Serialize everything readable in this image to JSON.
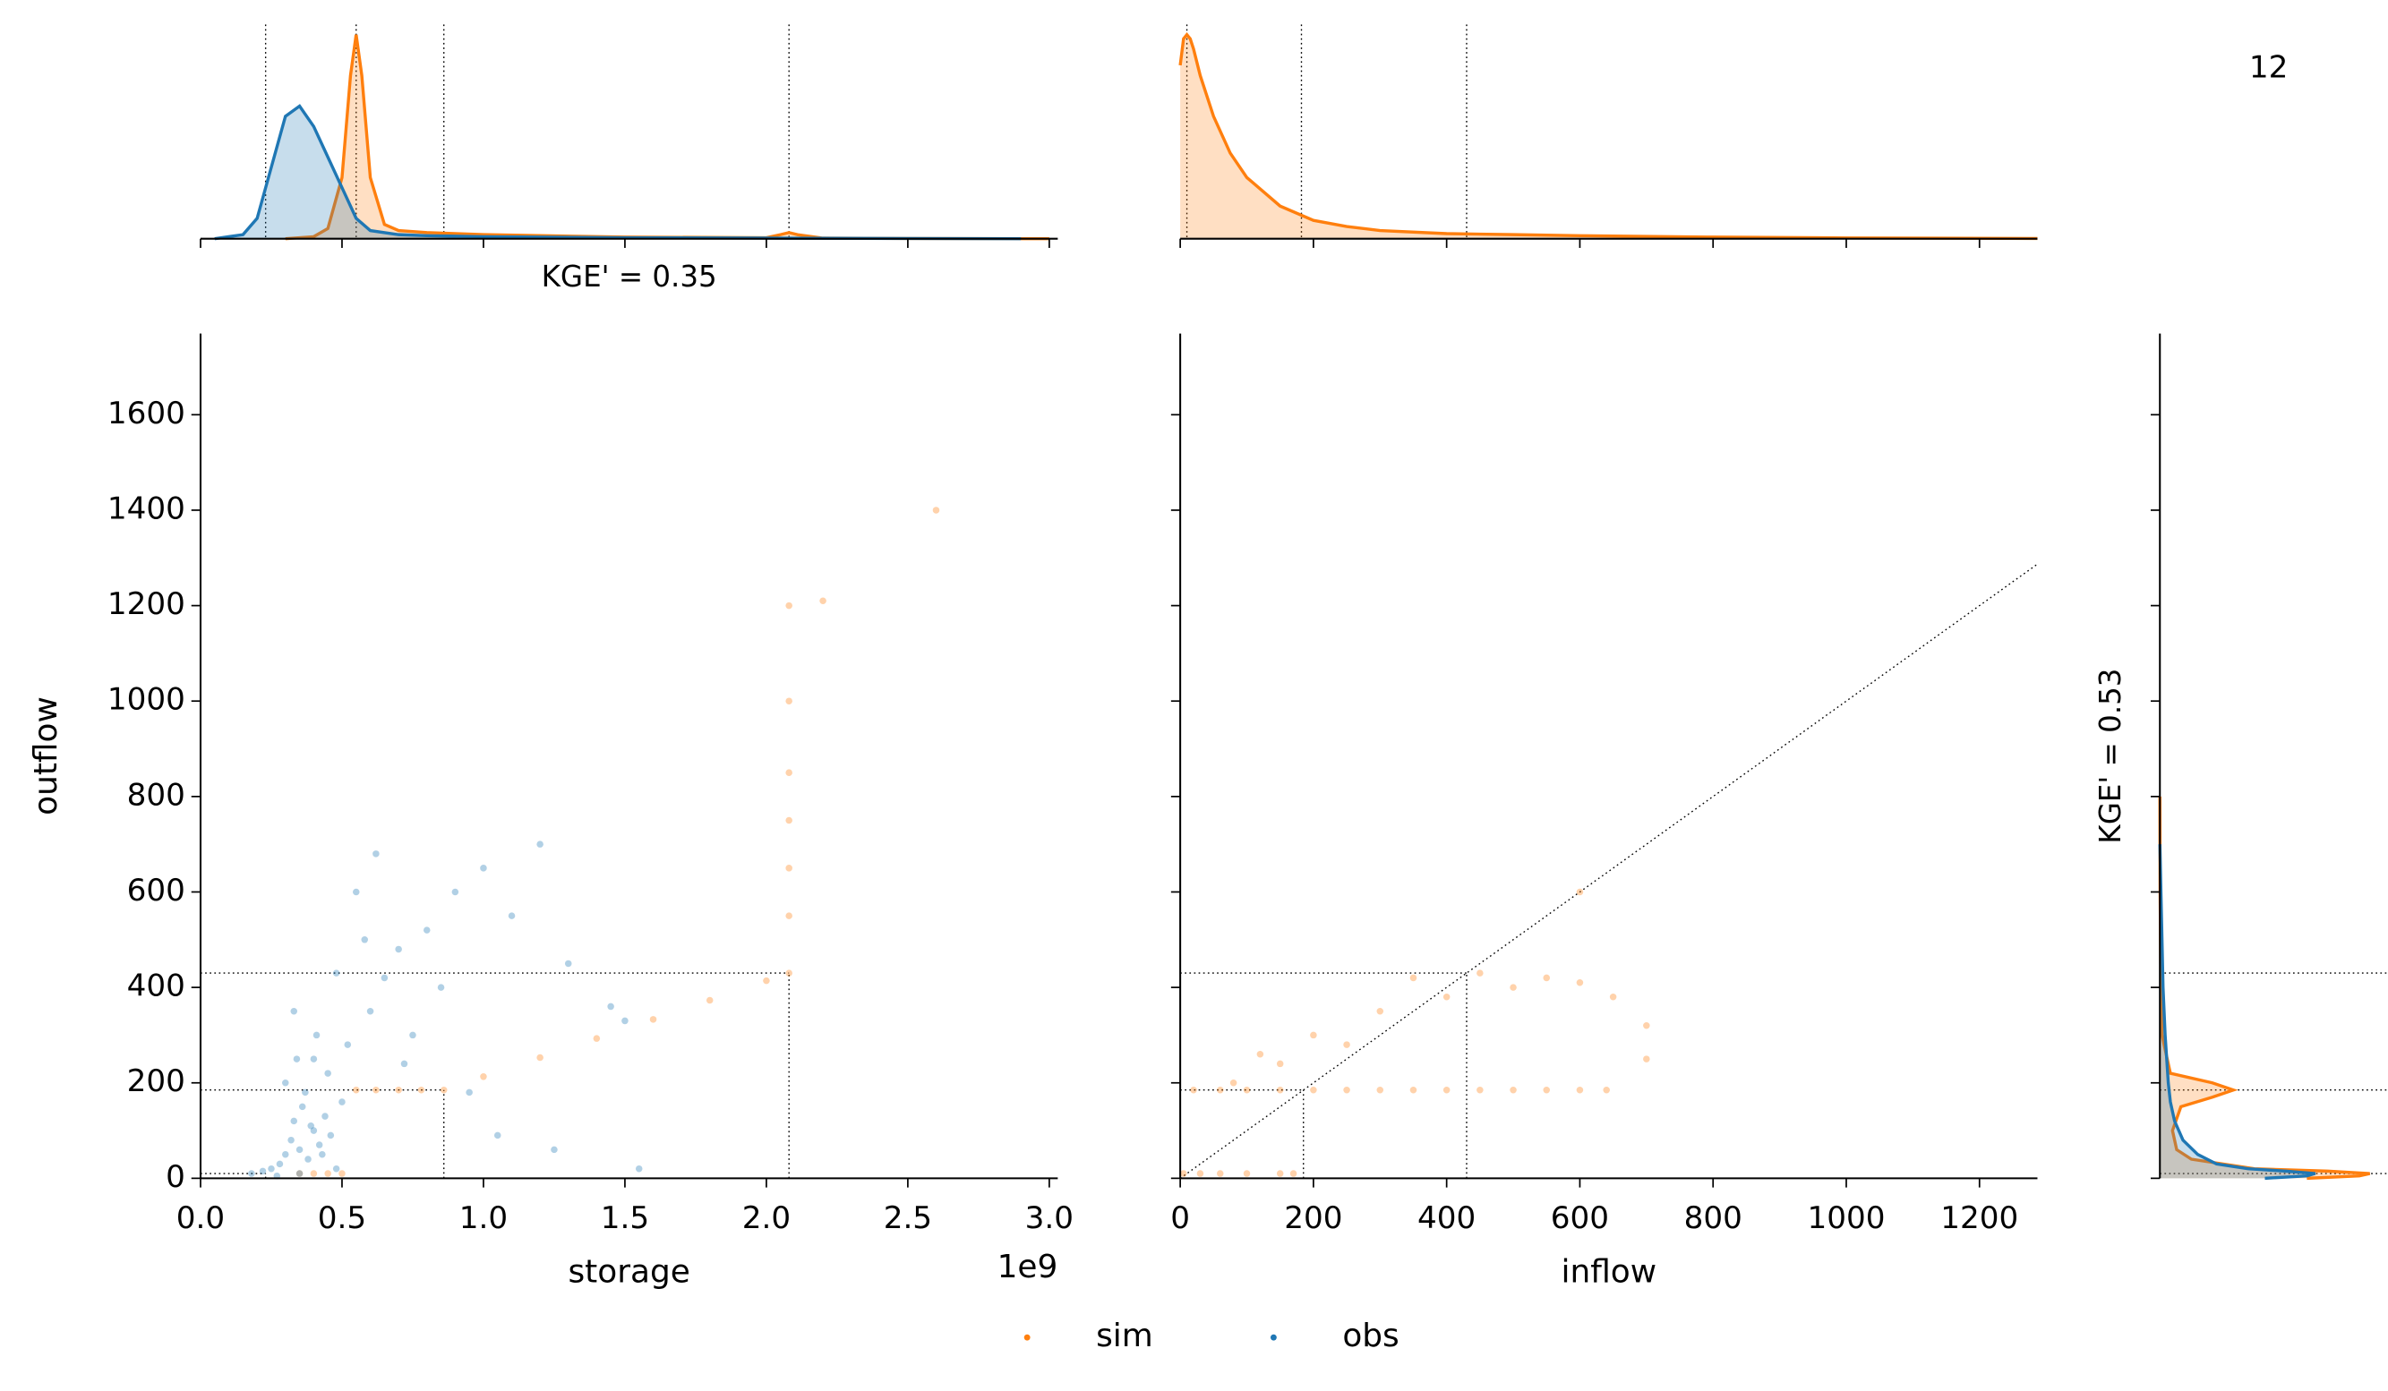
{
  "panel_label": "12",
  "chart_data": [
    {
      "type": "scatter",
      "xlabel": "storage",
      "ylabel": "outflow",
      "x_offset_label": "1e9",
      "xlim": [
        0,
        3.03
      ],
      "ylim": [
        0,
        1770
      ],
      "xticks": [
        {
          "value": 0,
          "label": "0.0"
        },
        0.5,
        {
          "value": 1,
          "label": "1.0"
        },
        1.5,
        {
          "value": 2,
          "label": "2.0"
        },
        2.5,
        {
          "value": 3,
          "label": "3.0"
        }
      ],
      "yticks": [
        0,
        200,
        400,
        600,
        800,
        1000,
        1200,
        1400,
        1600
      ],
      "thresholds": {
        "x": [
          0.23,
          0.86,
          2.08
        ],
        "y": [
          10,
          185,
          430
        ]
      },
      "series": [
        {
          "name": "sim",
          "color": "#ff7f0e",
          "x": [
            0.35,
            0.4,
            0.45,
            0.5,
            0.55,
            0.62,
            0.7,
            0.78,
            0.86,
            1.0,
            1.2,
            1.4,
            1.6,
            1.8,
            2.0,
            2.08,
            2.08,
            2.08,
            2.08,
            2.08,
            2.08,
            2.08,
            2.2,
            2.6
          ],
          "values": [
            10,
            10,
            10,
            10,
            185,
            185,
            185,
            185,
            185,
            213,
            253,
            293,
            333,
            373,
            414,
            430,
            550,
            650,
            750,
            850,
            1000,
            1200,
            1210,
            1400
          ]
        },
        {
          "name": "obs",
          "color": "#1f77b4",
          "x": [
            0.18,
            0.22,
            0.25,
            0.28,
            0.3,
            0.32,
            0.33,
            0.35,
            0.36,
            0.38,
            0.4,
            0.42,
            0.44,
            0.46,
            0.48,
            0.5,
            0.3,
            0.34,
            0.37,
            0.41,
            0.45,
            0.39,
            0.43,
            0.35,
            0.52,
            0.6,
            0.65,
            0.7,
            0.75,
            0.8,
            0.9,
            1.0,
            1.1,
            1.2,
            1.3,
            1.45,
            1.5,
            0.55,
            0.62,
            0.72,
            0.85,
            0.95,
            1.05,
            1.25,
            1.55,
            0.48,
            0.58,
            0.33,
            0.4,
            0.27
          ],
          "values": [
            10,
            15,
            20,
            30,
            50,
            80,
            120,
            60,
            150,
            40,
            100,
            70,
            130,
            90,
            20,
            160,
            200,
            250,
            180,
            300,
            220,
            110,
            50,
            10,
            280,
            350,
            420,
            480,
            300,
            520,
            600,
            650,
            550,
            700,
            450,
            360,
            330,
            600,
            680,
            240,
            400,
            180,
            90,
            60,
            20,
            430,
            500,
            350,
            250,
            5
          ]
        }
      ]
    },
    {
      "type": "scatter",
      "xlabel": "inflow",
      "xlim": [
        0,
        1287
      ],
      "xticks": [
        0,
        200,
        400,
        600,
        800,
        1000,
        1200
      ],
      "identity_line": true,
      "thresholds": {
        "x": [
          185,
          430
        ],
        "y": [
          185,
          430
        ]
      },
      "series": [
        {
          "name": "sim",
          "color": "#ff7f0e",
          "x": [
            5,
            30,
            60,
            100,
            150,
            170,
            20,
            60,
            100,
            150,
            200,
            250,
            300,
            350,
            400,
            450,
            500,
            550,
            600,
            640,
            80,
            120,
            200,
            300,
            400,
            500,
            600,
            700,
            150,
            250,
            350,
            450,
            550,
            650,
            700,
            600
          ],
          "values": [
            10,
            10,
            10,
            10,
            10,
            10,
            185,
            185,
            185,
            185,
            185,
            185,
            185,
            185,
            185,
            185,
            185,
            185,
            185,
            185,
            200,
            260,
            300,
            350,
            380,
            400,
            410,
            320,
            240,
            280,
            420,
            430,
            420,
            380,
            250,
            600
          ]
        }
      ]
    },
    {
      "type": "kde",
      "annotation": "KGE' = 0.35",
      "xlim": [
        0,
        3.03
      ],
      "ylim": [
        0,
        1.05
      ],
      "vlines": [
        0.23,
        0.55,
        0.86,
        2.08
      ],
      "series": [
        {
          "name": "sim",
          "color": "#ff7f0e",
          "x": [
            0.3,
            0.4,
            0.45,
            0.5,
            0.53,
            0.55,
            0.57,
            0.6,
            0.65,
            0.7,
            0.8,
            0.9,
            1.0,
            1.5,
            2.0,
            2.05,
            2.08,
            2.11,
            2.2,
            2.5,
            3.0
          ],
          "values": [
            0,
            0.01,
            0.05,
            0.3,
            0.8,
            1,
            0.8,
            0.3,
            0.07,
            0.04,
            0.03,
            0.025,
            0.02,
            0.008,
            0.005,
            0.02,
            0.03,
            0.02,
            0.003,
            0.001,
            0
          ]
        },
        {
          "name": "obs",
          "color": "#1f77b4",
          "x": [
            0.05,
            0.15,
            0.2,
            0.25,
            0.3,
            0.35,
            0.4,
            0.45,
            0.5,
            0.55,
            0.6,
            0.7,
            0.8,
            1.0,
            1.5,
            2.0,
            2.5,
            2.9
          ],
          "values": [
            0,
            0.02,
            0.1,
            0.35,
            0.6,
            0.65,
            0.55,
            0.4,
            0.25,
            0.1,
            0.04,
            0.02,
            0.015,
            0.01,
            0.005,
            0.003,
            0.001,
            0
          ]
        }
      ]
    },
    {
      "type": "kde",
      "xlim": [
        0,
        1287
      ],
      "ylim": [
        0,
        1.05
      ],
      "vlines": [
        10,
        182,
        430
      ],
      "series": [
        {
          "name": "sim",
          "color": "#ff7f0e",
          "x": [
            0,
            5,
            10,
            15,
            20,
            30,
            50,
            75,
            100,
            150,
            200,
            250,
            300,
            400,
            500,
            600,
            800,
            1000,
            1287
          ],
          "values": [
            0.85,
            0.98,
            1,
            0.98,
            0.93,
            0.8,
            0.6,
            0.42,
            0.3,
            0.16,
            0.09,
            0.06,
            0.04,
            0.025,
            0.02,
            0.015,
            0.008,
            0.004,
            0.001
          ]
        }
      ]
    },
    {
      "type": "kde",
      "orientation": "horizontal",
      "annotation": "KGE' = 0.53",
      "xlim": [
        0,
        1.05
      ],
      "hlines": [
        10,
        185,
        430
      ],
      "series": [
        {
          "name": "sim",
          "color": "#ff7f0e",
          "x": [
            0,
            5,
            10,
            15,
            20,
            40,
            60,
            100,
            150,
            170,
            185,
            200,
            220,
            300,
            450,
            600,
            800
          ],
          "values": [
            0.7,
            0.95,
            1,
            0.8,
            0.45,
            0.15,
            0.08,
            0.06,
            0.1,
            0.25,
            0.35,
            0.25,
            0.05,
            0.01,
            0.004,
            0.001,
            0
          ]
        },
        {
          "name": "obs",
          "color": "#1f77b4",
          "x": [
            0,
            5,
            10,
            15,
            20,
            30,
            50,
            80,
            120,
            160,
            200,
            300,
            400,
            500,
            600,
            700
          ],
          "values": [
            0.5,
            0.7,
            0.74,
            0.6,
            0.42,
            0.27,
            0.18,
            0.11,
            0.07,
            0.05,
            0.04,
            0.025,
            0.015,
            0.01,
            0.005,
            0
          ]
        }
      ]
    }
  ]
}
